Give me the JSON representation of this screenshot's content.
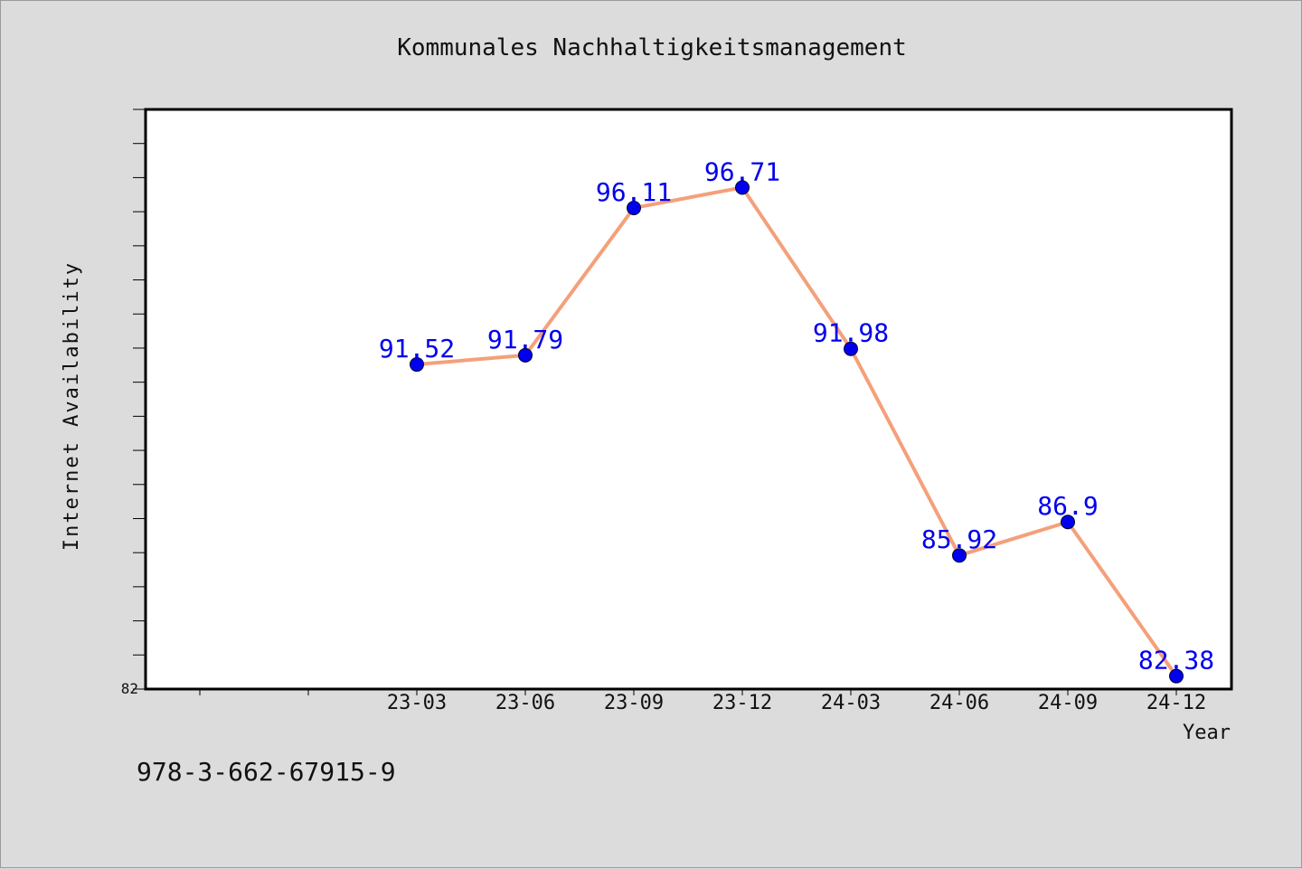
{
  "chart_data": {
    "type": "line",
    "title": "Kommunales Nachhaltigkeitsmanagement",
    "xlabel": "Year",
    "ylabel": "Internet Availability",
    "categories": [
      "23-03",
      "23-06",
      "23-09",
      "23-12",
      "24-03",
      "24-06",
      "24-09",
      "24-12"
    ],
    "series": [
      {
        "values": [
          91.52,
          91.79,
          96.11,
          96.71,
          91.98,
          85.92,
          86.9,
          82.38
        ]
      }
    ],
    "data_labels": [
      "91.52",
      "91.79",
      "96.11",
      "96.71",
      "91.98",
      "85.92",
      "86.9",
      "82.38"
    ],
    "y_tick_labels": [
      "82"
    ],
    "ylim": [
      82,
      99
    ],
    "grid": false,
    "line_color": "#f4a07a",
    "marker_color": "#0000ee",
    "label_color": "#0000ee"
  },
  "footer": {
    "code": "978-3-662-67915-9"
  }
}
